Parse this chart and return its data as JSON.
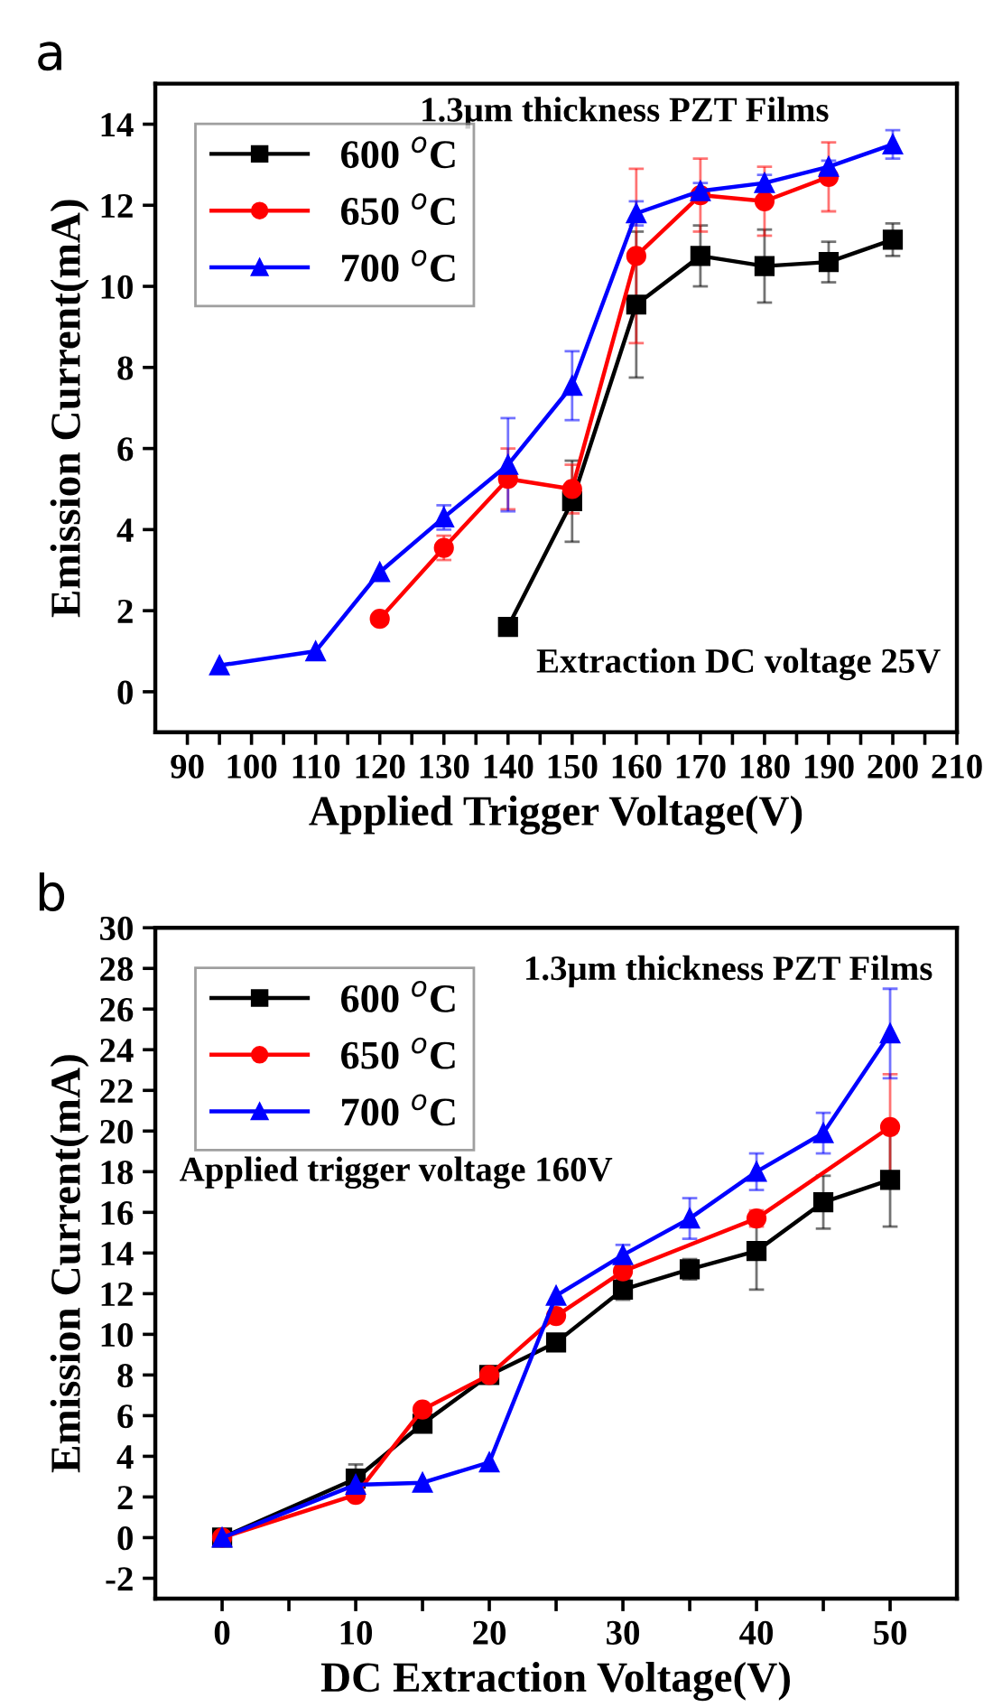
{
  "chart_data": [
    {
      "type": "line",
      "xlabel": "Applied Trigger Voltage(V)",
      "ylabel": "Emission Current(mA)",
      "annotations": [
        "a",
        "1.3μm thickness PZT Films",
        "Extraction DC voltage 25V"
      ],
      "xlim": [
        85,
        210
      ],
      "ylim": [
        -1,
        15
      ],
      "xticks": [
        90,
        {
          "value": 95,
          "label": null
        },
        100,
        {
          "value": 105,
          "label": null
        },
        110,
        {
          "value": 115,
          "label": null
        },
        120,
        {
          "value": 125,
          "label": null
        },
        130,
        {
          "value": 135,
          "label": null
        },
        140,
        {
          "value": 145,
          "label": null
        },
        150,
        {
          "value": 155,
          "label": null
        },
        160,
        {
          "value": 165,
          "label": null
        },
        170,
        {
          "value": 175,
          "label": null
        },
        180,
        {
          "value": 185,
          "label": null
        },
        190,
        {
          "value": 195,
          "label": null
        },
        200,
        {
          "value": 205,
          "label": null
        },
        210
      ],
      "yticks": [
        0,
        2,
        4,
        6,
        8,
        10,
        12,
        14
      ],
      "grid": false,
      "legend": "top left",
      "series": [
        {
          "name": "600 $^{o}$C",
          "color": "#000000",
          "marker": "square",
          "x": [
            140,
            150,
            160,
            170,
            180,
            190,
            200
          ],
          "values": [
            1.6,
            4.7,
            9.55,
            10.75,
            10.5,
            10.6,
            11.15
          ],
          "errors": [
            null,
            1.0,
            1.8,
            0.75,
            0.9,
            0.5,
            0.4
          ]
        },
        {
          "name": "650 $^{o}$C",
          "color": "#ff0000",
          "marker": "circle",
          "x": [
            120,
            130,
            140,
            150,
            160,
            170,
            180,
            190
          ],
          "values": [
            1.8,
            3.55,
            5.25,
            5.0,
            10.75,
            12.25,
            12.1,
            12.7
          ],
          "errors": [
            null,
            0.3,
            0.75,
            0.6,
            2.15,
            0.9,
            0.85,
            0.85
          ]
        },
        {
          "name": "700 $^{o}$C",
          "color": "#0000ff",
          "marker": "triangle",
          "x": [
            95,
            110,
            120,
            130,
            140,
            150,
            160,
            170,
            180,
            190,
            200
          ],
          "values": [
            0.65,
            1.0,
            2.95,
            4.3,
            5.6,
            7.55,
            11.8,
            12.35,
            12.55,
            12.95,
            13.5
          ],
          "errors": [
            null,
            null,
            null,
            0.3,
            1.15,
            0.85,
            0.3,
            0.2,
            0.2,
            0.15,
            0.35
          ]
        }
      ]
    },
    {
      "type": "line",
      "xlabel": "DC Extraction Voltage(V)",
      "ylabel": "Emission Current(mA)",
      "annotations": [
        "b",
        "1.3μm thickness PZT Films",
        "Applied trigger voltage 160V"
      ],
      "xlim": [
        -5,
        55
      ],
      "ylim": [
        -3,
        30
      ],
      "xticks": [
        0,
        {
          "value": 5,
          "label": null
        },
        10,
        {
          "value": 15,
          "label": null
        },
        20,
        {
          "value": 25,
          "label": null
        },
        30,
        {
          "value": 35,
          "label": null
        },
        40,
        {
          "value": 45,
          "label": null
        },
        50
      ],
      "yticks": [
        {
          "value": -2,
          "label": "-2"
        },
        0,
        2,
        4,
        6,
        8,
        10,
        12,
        14,
        16,
        18,
        20,
        22,
        24,
        26,
        28,
        30
      ],
      "grid": false,
      "legend": "top left",
      "series": [
        {
          "name": "600 $^{o}$C",
          "color": "#000000",
          "marker": "square",
          "x": [
            0,
            10,
            15,
            20,
            25,
            30,
            35,
            40,
            45,
            50
          ],
          "values": [
            0.0,
            2.9,
            5.6,
            8.0,
            9.6,
            12.2,
            13.2,
            14.1,
            16.5,
            17.6
          ],
          "errors": [
            null,
            0.7,
            null,
            null,
            null,
            0.5,
            0.5,
            1.9,
            1.3,
            2.3
          ]
        },
        {
          "name": "650 $^{o}$C",
          "color": "#ff0000",
          "marker": "circle",
          "x": [
            0,
            10,
            15,
            20,
            25,
            30,
            40,
            50
          ],
          "values": [
            0.0,
            2.1,
            6.3,
            8.0,
            10.9,
            13.1,
            15.7,
            20.2
          ],
          "errors": [
            null,
            null,
            null,
            null,
            null,
            null,
            0.4,
            2.6
          ]
        },
        {
          "name": "700 $^{o}$C",
          "color": "#0000ff",
          "marker": "triangle",
          "x": [
            0,
            10,
            15,
            20,
            25,
            30,
            35,
            40,
            45,
            50
          ],
          "values": [
            0.0,
            2.6,
            2.7,
            3.7,
            11.9,
            13.9,
            15.7,
            18.0,
            19.9,
            24.8
          ],
          "errors": [
            null,
            null,
            null,
            null,
            null,
            0.5,
            1.0,
            0.9,
            1.0,
            2.2
          ]
        }
      ]
    }
  ]
}
